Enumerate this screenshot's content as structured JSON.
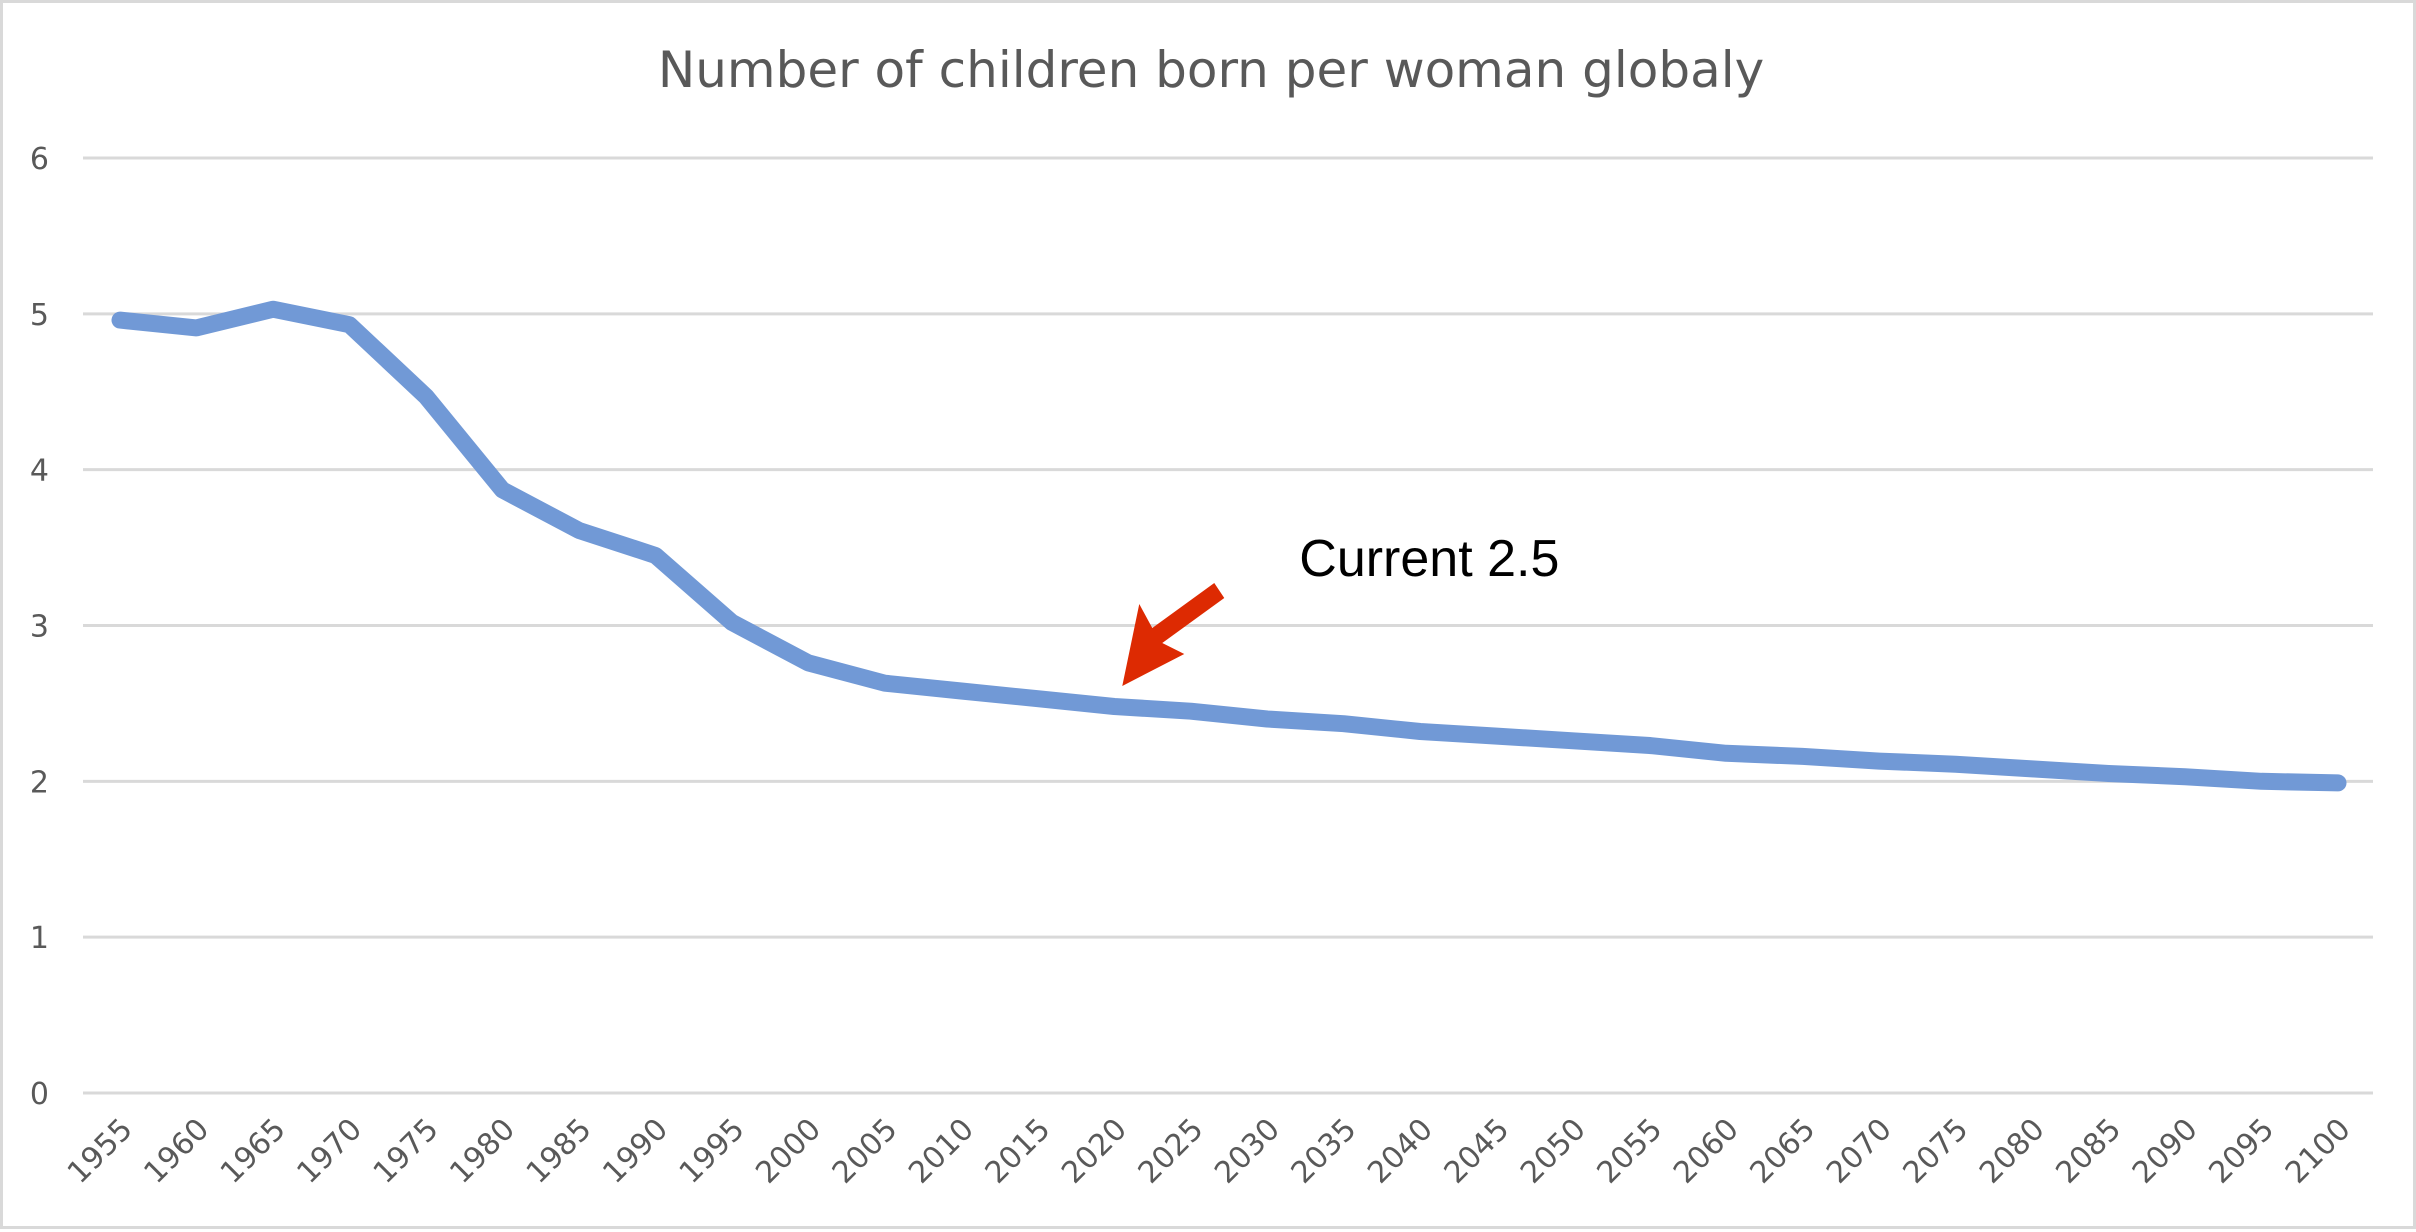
{
  "chart_data": {
    "type": "line",
    "title": "Number of children born per woman globaly",
    "xlabel": "",
    "ylabel": "",
    "ylim": [
      0,
      6
    ],
    "yticks": [
      0,
      1,
      2,
      3,
      4,
      5,
      6
    ],
    "grid": true,
    "legend": "none",
    "x": [
      "1955",
      "1960",
      "1965",
      "1970",
      "1975",
      "1980",
      "1985",
      "1990",
      "1995",
      "2000",
      "2005",
      "2010",
      "2015",
      "2020",
      "2025",
      "2030",
      "2035",
      "2040",
      "2045",
      "2050",
      "2055",
      "2060",
      "2065",
      "2070",
      "2075",
      "2080",
      "2085",
      "2090",
      "2095",
      "2100"
    ],
    "series": [
      {
        "color": "#7199d6",
        "values": [
          4.96,
          4.91,
          5.03,
          4.93,
          4.47,
          3.87,
          3.61,
          3.45,
          3.02,
          2.76,
          2.63,
          2.58,
          2.53,
          2.48,
          2.45,
          2.4,
          2.37,
          2.32,
          2.29,
          2.26,
          2.23,
          2.18,
          2.16,
          2.13,
          2.11,
          2.08,
          2.05,
          2.03,
          2.0,
          1.99
        ]
      }
    ],
    "annotations": [
      {
        "text": "Current 2.5",
        "target_x": "2020",
        "color": "#dd2a02"
      }
    ]
  }
}
